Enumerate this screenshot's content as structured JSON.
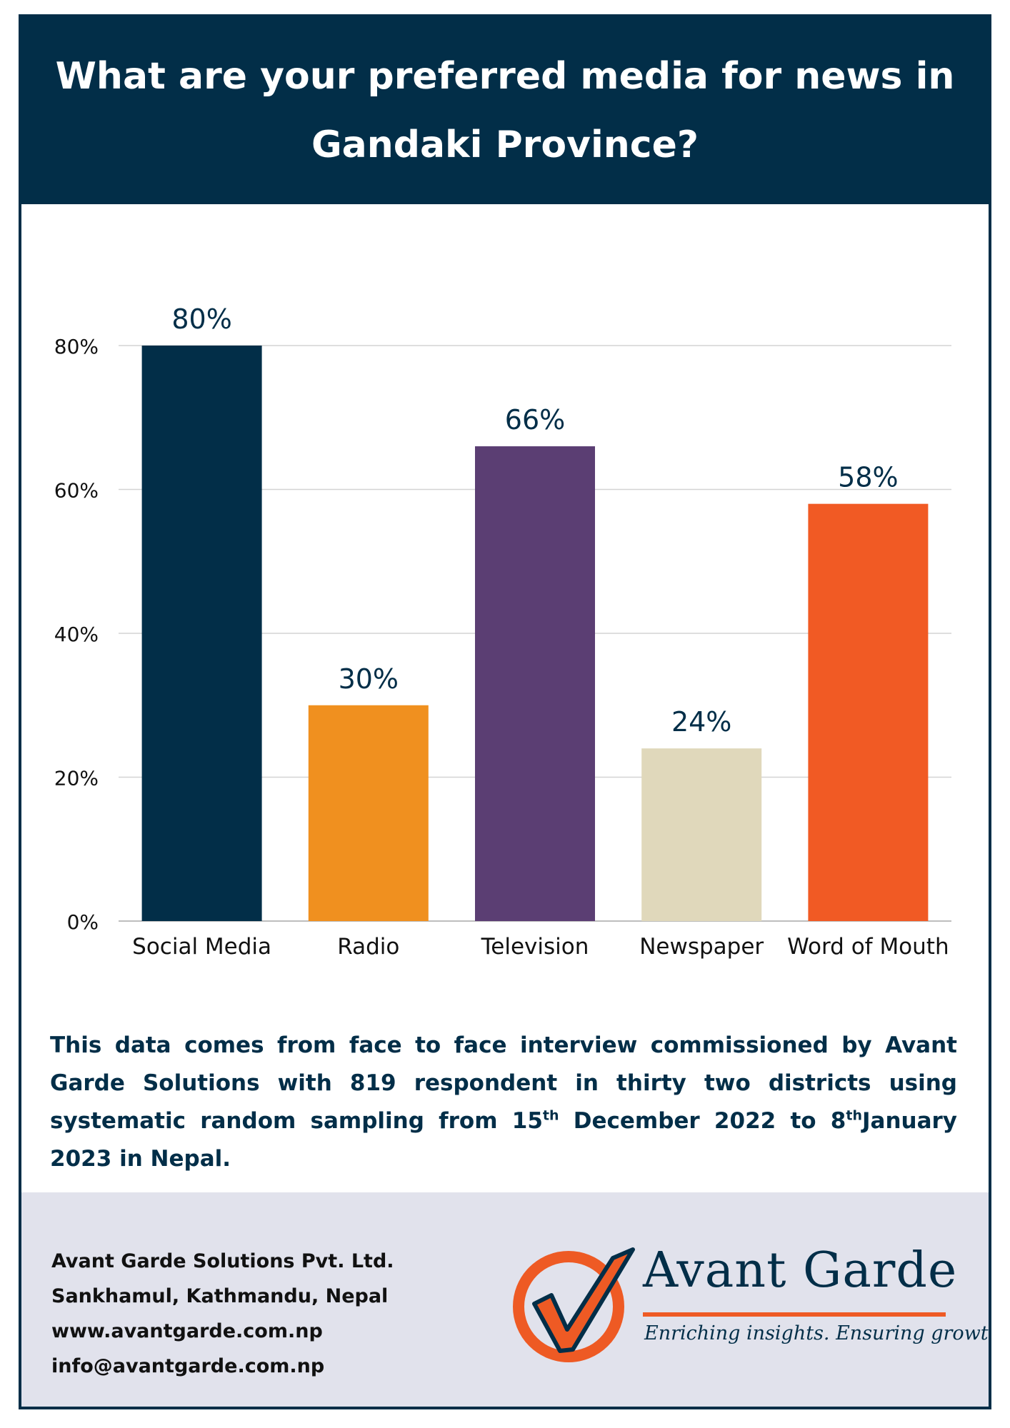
{
  "header": {
    "title": "What are your preferred media for news in Gandaki  Province?"
  },
  "chart_data": {
    "type": "bar",
    "categories": [
      "Social Media",
      "Radio",
      "Television",
      "Newspaper",
      "Word of Mouth"
    ],
    "values": [
      80,
      30,
      66,
      24,
      58
    ],
    "data_labels": [
      "80%",
      "30%",
      "66%",
      "24%",
      "58%"
    ],
    "colors": [
      "#022e48",
      "#f0901f",
      "#5b3e73",
      "#e0d8bb",
      "#f15a24"
    ],
    "ylim": [
      0,
      80
    ],
    "yticks": [
      {
        "value": 0,
        "label": "0%"
      },
      {
        "value": 20,
        "label": "20%"
      },
      {
        "value": 40,
        "label": "40%"
      },
      {
        "value": 60,
        "label": "60%"
      },
      {
        "value": 80,
        "label": "80%"
      }
    ],
    "grid": true,
    "legend": "none"
  },
  "note": {
    "part1": "This data comes from face to face interview commissioned by Avant Garde Solutions with 819 respondent in thirty two districts using systematic random sampling from 15",
    "sup1": "th",
    "part2": " December 2022 to 8",
    "sup2": "th",
    "part3": "January 2023 in Nepal."
  },
  "footer": {
    "company": "Avant Garde Solutions Pvt. Ltd.",
    "address": "Sankhamul, Kathmandu, Nepal",
    "website": "www.avantgarde.com.np",
    "email": "info@avantgarde.com.np"
  },
  "brand": {
    "name": "Avant Garde",
    "tagline": "Enriching insights. Ensuring growth.",
    "logo_icon": "check-circle-logo",
    "primary_color": "#022e48",
    "accent_color": "#ee5a24"
  }
}
